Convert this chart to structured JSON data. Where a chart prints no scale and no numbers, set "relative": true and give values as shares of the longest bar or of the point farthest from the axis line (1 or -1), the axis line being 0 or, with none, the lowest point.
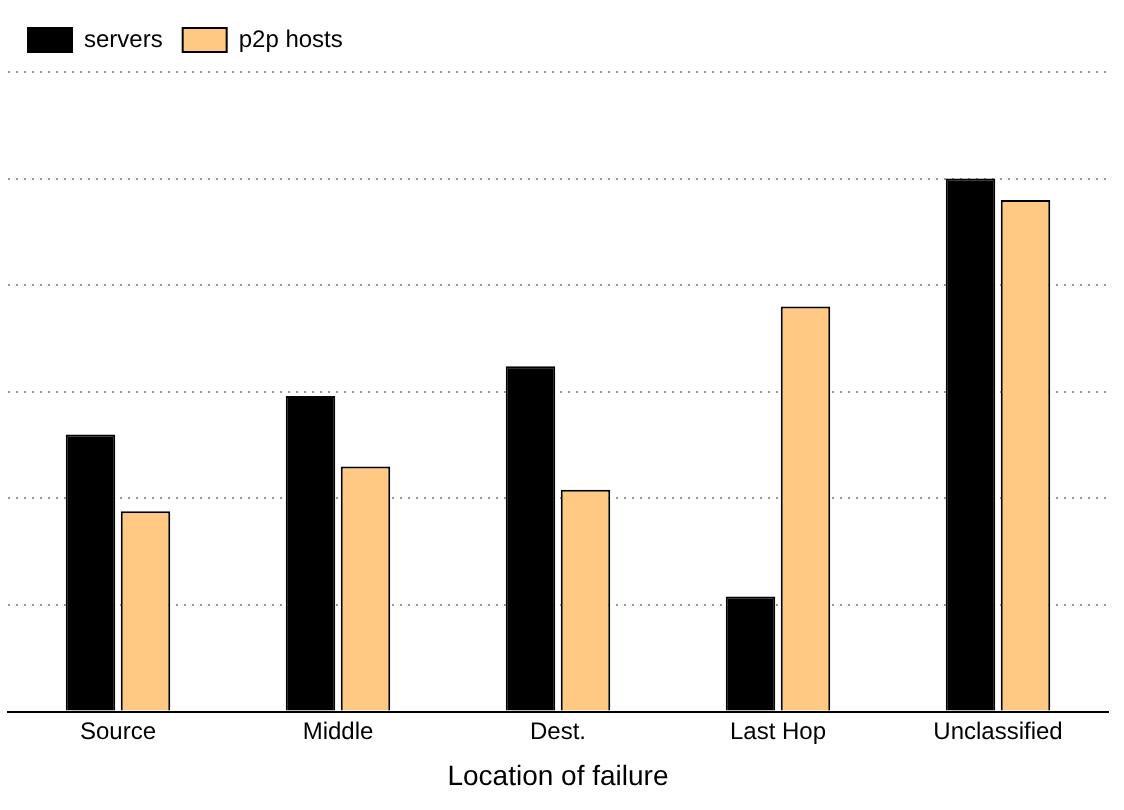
{
  "chart_data": {
    "type": "bar",
    "xlabel": "Location of failure",
    "categories": [
      "Source",
      "Middle",
      "Dest.",
      "Last Hop",
      "Unclassified"
    ],
    "series": [
      {
        "name": "servers",
        "color": "#000000",
        "values": [
          0.52,
          0.592,
          0.648,
          0.216,
          1
        ]
      },
      {
        "name": "p2p hosts",
        "color": "#ffc883",
        "values": [
          0.376,
          0.46,
          0.416,
          0.76,
          0.96
        ]
      }
    ],
    "relative": true,
    "grid": "y",
    "legend": "top left"
  }
}
